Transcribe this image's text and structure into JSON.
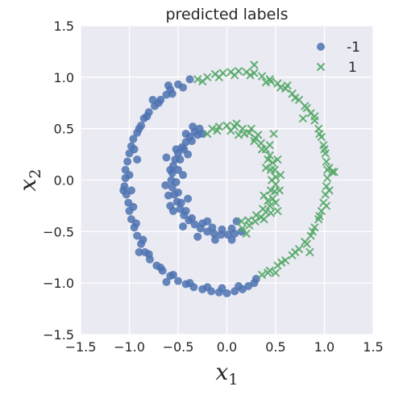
{
  "chart_data": {
    "type": "scatter",
    "title": "predicted labels",
    "xlabel": "x",
    "xlabel_sub": "1",
    "ylabel": "x",
    "ylabel_sub": "2",
    "xlim": [
      -1.5,
      1.5
    ],
    "ylim": [
      -1.5,
      1.5
    ],
    "xticks": [
      -1.5,
      -1.0,
      -0.5,
      0.0,
      0.5,
      1.0,
      1.5
    ],
    "yticks": [
      -1.5,
      -1.0,
      -0.5,
      0.0,
      0.5,
      1.0,
      1.5
    ],
    "xtick_labels": [
      "−1.5",
      "−1.0",
      "−0.5",
      "0.0",
      "0.5",
      "1.0",
      "1.5"
    ],
    "ytick_labels": [
      "−1.5",
      "−1.0",
      "−0.5",
      "0.0",
      "0.5",
      "1.0",
      "1.5"
    ],
    "grid": true,
    "legend_position": "top-right",
    "colors": {
      "background": "#eaeaf2",
      "grid": "#ffffff",
      "series_neg": "#4c72b0",
      "series_pos": "#55a868"
    },
    "series": [
      {
        "name": "-1",
        "marker": "circle",
        "color": "#4c72b0",
        "points": [
          [
            -0.38,
            0.98
          ],
          [
            -0.5,
            0.93
          ],
          [
            -0.58,
            0.88
          ],
          [
            -0.62,
            0.83
          ],
          [
            -0.68,
            0.78
          ],
          [
            -0.74,
            0.72
          ],
          [
            -0.8,
            0.66
          ],
          [
            -0.85,
            0.6
          ],
          [
            -0.88,
            0.53
          ],
          [
            -0.92,
            0.46
          ],
          [
            -0.96,
            0.4
          ],
          [
            -0.98,
            0.33
          ],
          [
            -1.0,
            0.26
          ],
          [
            -1.02,
            0.18
          ],
          [
            -1.04,
            0.1
          ],
          [
            -1.04,
            0.02
          ],
          [
            -1.05,
            -0.06
          ],
          [
            -1.03,
            -0.14
          ],
          [
            -1.01,
            -0.22
          ],
          [
            -1.0,
            -0.3
          ],
          [
            -0.98,
            -0.38
          ],
          [
            -0.95,
            -0.46
          ],
          [
            -0.92,
            -0.54
          ],
          [
            -0.88,
            -0.62
          ],
          [
            -0.84,
            -0.7
          ],
          [
            -0.79,
            -0.77
          ],
          [
            -0.72,
            -0.83
          ],
          [
            -0.66,
            -0.88
          ],
          [
            -0.58,
            -0.93
          ],
          [
            -0.5,
            -0.98
          ],
          [
            -0.42,
            -1.01
          ],
          [
            -0.34,
            -1.04
          ],
          [
            -0.25,
            -1.06
          ],
          [
            -0.16,
            -1.08
          ],
          [
            -0.08,
            -1.09
          ],
          [
            0.0,
            -1.1
          ],
          [
            0.08,
            -1.08
          ],
          [
            0.16,
            -1.06
          ],
          [
            0.22,
            -1.03
          ],
          [
            0.28,
            -1.0
          ],
          [
            -0.45,
            0.9
          ],
          [
            -0.56,
            0.84
          ],
          [
            -0.7,
            0.75
          ],
          [
            -0.82,
            0.62
          ],
          [
            -0.9,
            0.5
          ],
          [
            -0.95,
            0.3
          ],
          [
            -1.0,
            0.05
          ],
          [
            -0.98,
            -0.1
          ],
          [
            -0.96,
            -0.26
          ],
          [
            -0.93,
            -0.42
          ],
          [
            -0.86,
            -0.58
          ],
          [
            -0.8,
            -0.72
          ],
          [
            -0.68,
            -0.85
          ],
          [
            -0.55,
            -0.92
          ],
          [
            -0.38,
            -1.0
          ],
          [
            -0.2,
            -1.04
          ],
          [
            -0.05,
            -1.05
          ],
          [
            0.12,
            -1.03
          ],
          [
            0.3,
            -0.96
          ],
          [
            -0.6,
            0.92
          ],
          [
            -0.76,
            0.78
          ],
          [
            -0.92,
            0.2
          ],
          [
            -1.06,
            -0.1
          ],
          [
            -0.9,
            -0.7
          ],
          [
            -0.62,
            -0.99
          ],
          [
            -0.28,
            0.5
          ],
          [
            -0.33,
            0.47
          ],
          [
            -0.38,
            0.42
          ],
          [
            -0.42,
            0.37
          ],
          [
            -0.46,
            0.32
          ],
          [
            -0.5,
            0.26
          ],
          [
            -0.53,
            0.2
          ],
          [
            -0.55,
            0.14
          ],
          [
            -0.56,
            0.07
          ],
          [
            -0.57,
            0.0
          ],
          [
            -0.56,
            -0.07
          ],
          [
            -0.54,
            -0.14
          ],
          [
            -0.51,
            -0.21
          ],
          [
            -0.48,
            -0.28
          ],
          [
            -0.44,
            -0.34
          ],
          [
            -0.39,
            -0.39
          ],
          [
            -0.33,
            -0.43
          ],
          [
            -0.27,
            -0.47
          ],
          [
            -0.2,
            -0.5
          ],
          [
            -0.13,
            -0.52
          ],
          [
            -0.06,
            -0.53
          ],
          [
            0.01,
            -0.53
          ],
          [
            0.08,
            -0.52
          ],
          [
            0.15,
            -0.5
          ],
          [
            -0.3,
            0.44
          ],
          [
            -0.36,
            0.38
          ],
          [
            -0.44,
            0.3
          ],
          [
            -0.48,
            0.2
          ],
          [
            -0.5,
            0.1
          ],
          [
            -0.52,
            -0.02
          ],
          [
            -0.5,
            -0.12
          ],
          [
            -0.47,
            -0.22
          ],
          [
            -0.42,
            -0.3
          ],
          [
            -0.36,
            -0.37
          ],
          [
            -0.25,
            -0.42
          ],
          [
            -0.15,
            -0.46
          ],
          [
            -0.05,
            -0.48
          ],
          [
            0.05,
            -0.47
          ],
          [
            -0.35,
            0.52
          ],
          [
            -0.42,
            0.45
          ],
          [
            -0.52,
            0.3
          ],
          [
            -0.58,
            0.1
          ],
          [
            -0.6,
            -0.15
          ],
          [
            -0.55,
            -0.3
          ],
          [
            -0.45,
            -0.45
          ],
          [
            -0.3,
            -0.55
          ],
          [
            -0.12,
            -0.58
          ],
          [
            0.05,
            -0.58
          ],
          [
            -0.25,
            0.45
          ],
          [
            -0.4,
            0.25
          ],
          [
            -0.45,
            0.05
          ],
          [
            -0.4,
            -0.18
          ],
          [
            -0.2,
            -0.4
          ],
          [
            0.1,
            -0.4
          ],
          [
            -0.62,
            0.22
          ],
          [
            -0.63,
            -0.05
          ],
          [
            -0.58,
            -0.25
          ]
        ]
      },
      {
        "name": "1",
        "marker": "x",
        "color": "#55a868",
        "points": [
          [
            -0.3,
            0.98
          ],
          [
            -0.2,
            1.0
          ],
          [
            -0.12,
            1.03
          ],
          [
            -0.04,
            1.04
          ],
          [
            0.04,
            1.05
          ],
          [
            0.12,
            1.06
          ],
          [
            0.2,
            1.05
          ],
          [
            0.28,
            1.04
          ],
          [
            0.36,
            1.01
          ],
          [
            0.44,
            0.98
          ],
          [
            0.52,
            0.94
          ],
          [
            0.6,
            0.89
          ],
          [
            0.67,
            0.84
          ],
          [
            0.74,
            0.78
          ],
          [
            0.8,
            0.72
          ],
          [
            0.86,
            0.65
          ],
          [
            0.9,
            0.58
          ],
          [
            0.94,
            0.5
          ],
          [
            0.97,
            0.42
          ],
          [
            0.99,
            0.34
          ],
          [
            1.01,
            0.26
          ],
          [
            1.02,
            0.18
          ],
          [
            1.03,
            0.1
          ],
          [
            1.03,
            0.02
          ],
          [
            1.02,
            -0.06
          ],
          [
            1.01,
            -0.14
          ],
          [
            0.99,
            -0.22
          ],
          [
            0.97,
            -0.3
          ],
          [
            0.94,
            -0.38
          ],
          [
            0.9,
            -0.46
          ],
          [
            0.86,
            -0.54
          ],
          [
            0.8,
            -0.6
          ],
          [
            0.74,
            -0.67
          ],
          [
            0.67,
            -0.73
          ],
          [
            0.6,
            -0.78
          ],
          [
            0.52,
            -0.83
          ],
          [
            0.44,
            -0.88
          ],
          [
            0.36,
            -0.92
          ],
          [
            -0.25,
            0.96
          ],
          [
            -0.08,
            1.0
          ],
          [
            0.08,
            1.02
          ],
          [
            0.24,
            1.02
          ],
          [
            0.4,
            0.95
          ],
          [
            0.55,
            0.9
          ],
          [
            0.7,
            0.8
          ],
          [
            0.82,
            0.7
          ],
          [
            0.9,
            0.62
          ],
          [
            0.95,
            0.45
          ],
          [
            1.0,
            0.3
          ],
          [
            1.05,
            0.12
          ],
          [
            1.08,
            0.08
          ],
          [
            1.05,
            -0.1
          ],
          [
            1.02,
            -0.25
          ],
          [
            0.95,
            -0.35
          ],
          [
            0.88,
            -0.5
          ],
          [
            0.82,
            -0.62
          ],
          [
            0.7,
            -0.7
          ],
          [
            0.56,
            -0.8
          ],
          [
            0.42,
            -0.9
          ],
          [
            0.28,
            1.12
          ],
          [
            0.45,
            0.96
          ],
          [
            0.62,
            0.92
          ],
          [
            0.78,
            0.6
          ],
          [
            1.1,
            0.08
          ],
          [
            0.85,
            -0.7
          ],
          [
            0.5,
            -0.9
          ],
          [
            -0.15,
            0.5
          ],
          [
            -0.08,
            0.52
          ],
          [
            0.0,
            0.53
          ],
          [
            0.08,
            0.52
          ],
          [
            0.16,
            0.5
          ],
          [
            0.23,
            0.46
          ],
          [
            0.29,
            0.41
          ],
          [
            0.35,
            0.36
          ],
          [
            0.4,
            0.3
          ],
          [
            0.44,
            0.24
          ],
          [
            0.47,
            0.17
          ],
          [
            0.49,
            0.1
          ],
          [
            0.5,
            0.03
          ],
          [
            0.5,
            -0.04
          ],
          [
            0.49,
            -0.11
          ],
          [
            0.47,
            -0.18
          ],
          [
            0.44,
            -0.25
          ],
          [
            0.4,
            -0.31
          ],
          [
            0.35,
            -0.36
          ],
          [
            0.29,
            -0.4
          ],
          [
            0.23,
            -0.44
          ],
          [
            0.16,
            -0.47
          ],
          [
            -0.1,
            0.48
          ],
          [
            0.04,
            0.48
          ],
          [
            0.18,
            0.45
          ],
          [
            0.28,
            0.38
          ],
          [
            0.36,
            0.3
          ],
          [
            0.42,
            0.2
          ],
          [
            0.45,
            0.1
          ],
          [
            0.46,
            0.0
          ],
          [
            0.45,
            -0.1
          ],
          [
            0.42,
            -0.2
          ],
          [
            0.37,
            -0.28
          ],
          [
            0.3,
            -0.34
          ],
          [
            0.22,
            -0.39
          ],
          [
            -0.2,
            0.45
          ],
          [
            0.1,
            0.55
          ],
          [
            0.32,
            0.44
          ],
          [
            0.44,
            0.34
          ],
          [
            0.52,
            0.2
          ],
          [
            0.55,
            0.05
          ],
          [
            0.54,
            -0.1
          ],
          [
            0.5,
            -0.22
          ],
          [
            0.45,
            -0.32
          ],
          [
            0.38,
            -0.38
          ],
          [
            0.2,
            -0.52
          ],
          [
            0.12,
            0.44
          ],
          [
            0.25,
            0.5
          ],
          [
            0.4,
            0.12
          ],
          [
            0.38,
            -0.15
          ],
          [
            0.15,
            -0.4
          ],
          [
            0.48,
            0.45
          ],
          [
            0.52,
            -0.3
          ]
        ]
      }
    ]
  }
}
